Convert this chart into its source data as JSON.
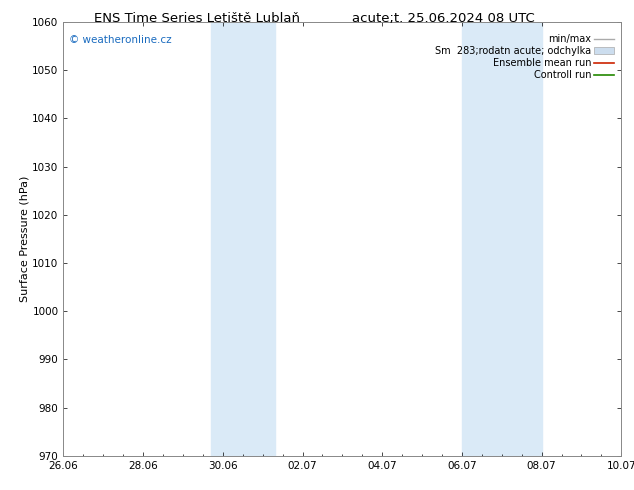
{
  "title_left": "ENS Time Series Letiště Lublaň",
  "title_right": "acute;t. 25.06.2024 08 UTC",
  "ylabel": "Surface Pressure (hPa)",
  "ylim": [
    970,
    1060
  ],
  "yticks": [
    970,
    980,
    990,
    1000,
    1010,
    1020,
    1030,
    1040,
    1050,
    1060
  ],
  "xtick_labels": [
    "26.06",
    "28.06",
    "30.06",
    "02.07",
    "04.07",
    "06.07",
    "08.07",
    "10.07"
  ],
  "xtick_positions": [
    0,
    2,
    4,
    6,
    8,
    10,
    12,
    14
  ],
  "xlim": [
    0,
    14
  ],
  "shaded_bands": [
    {
      "xmin": 3.7,
      "xmax": 5.3
    },
    {
      "xmin": 10.0,
      "xmax": 12.0
    }
  ],
  "shade_color": "#daeaf7",
  "watermark": "© weatheronline.cz",
  "watermark_color": "#1a6bbf",
  "bg_color": "#ffffff",
  "plot_bg_color": "#ffffff",
  "title_fontsize": 9.5,
  "tick_fontsize": 7.5,
  "ylabel_fontsize": 8,
  "legend_fontsize": 7.0,
  "watermark_fontsize": 7.5
}
